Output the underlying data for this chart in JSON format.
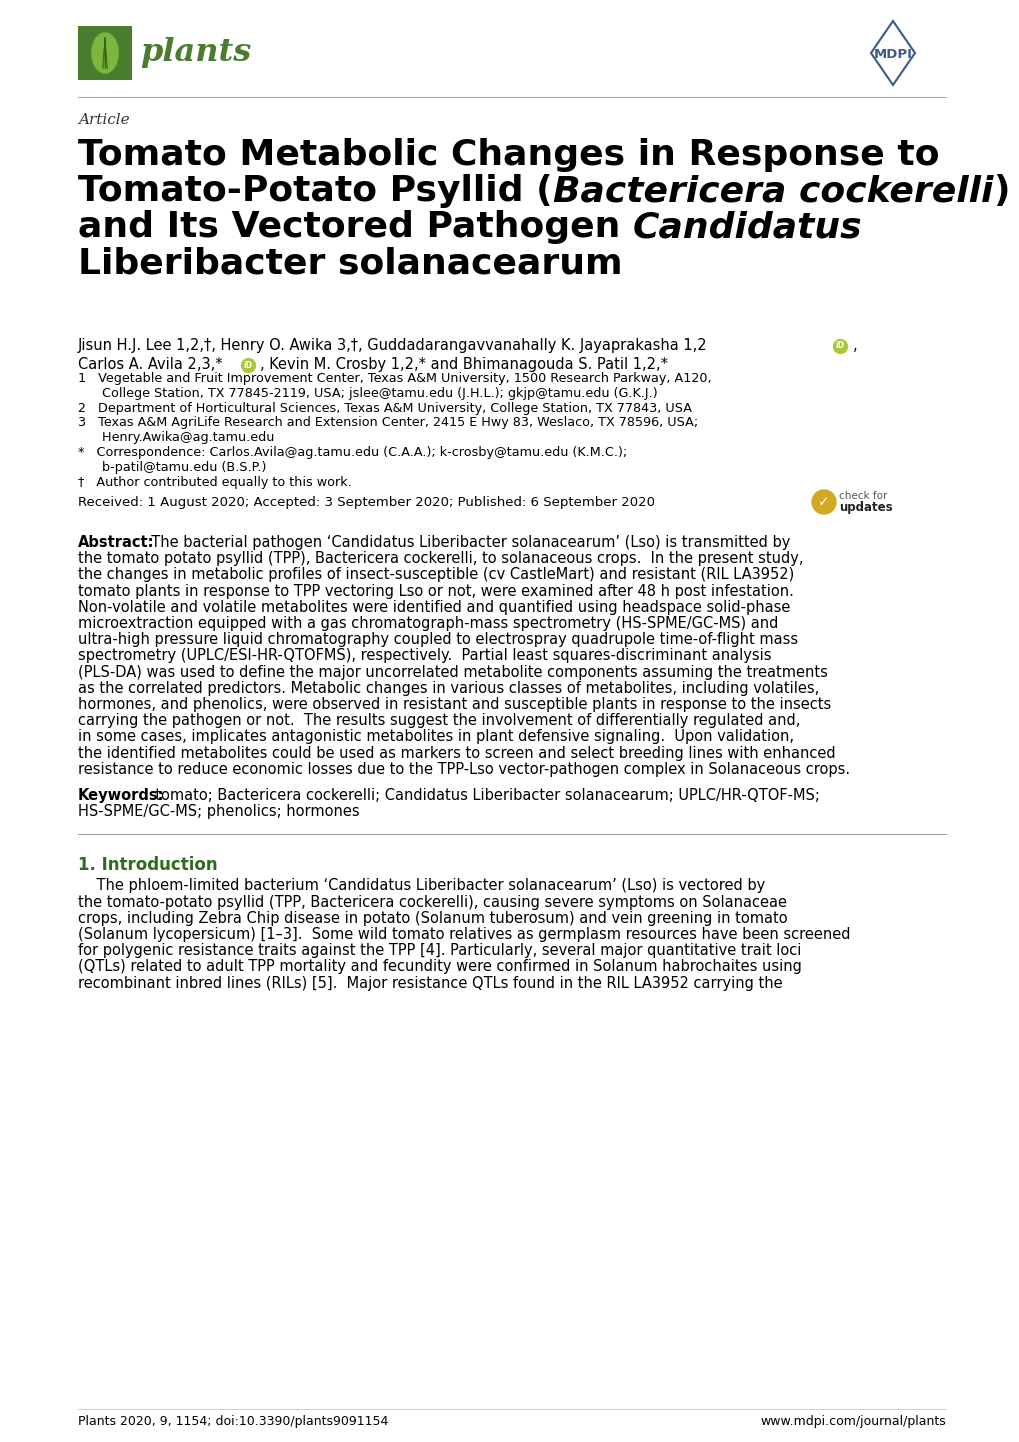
{
  "article_label": "Article",
  "title_line1": "Tomato Metabolic Changes in Response to",
  "title_line2_pre": "Tomato-Potato Psyllid (",
  "title_line2_italic": "Bactericera cockerelli",
  "title_line2_post": ")",
  "title_line3_pre": "and Its Vectored Pathogen ",
  "title_line3_italic": "Candidatus",
  "title_line4": "Liberibacter solanacearum",
  "author_line1": "Jisun H.J. Lee ",
  "author_line1_sup": "1,2,†",
  "author_line1b": ", Henry O. Awika ",
  "author_line1b_sup": "3,†",
  "author_line1c": ", Guddadarangavvanahally K. Jayaprakasha ",
  "author_line1c_sup": "1,2",
  "author_line2": "Carlos A. Avila ",
  "author_line2_sup": "2,3,*",
  "author_line2b": ", Kevin M. Crosby ",
  "author_line2b_sup": "1,2,*",
  "author_line2c": " and Bhimanagouda S. Patil ",
  "author_line2c_sup": "1,2,*",
  "affil_lines": [
    "1   Vegetable and Fruit Improvement Center, Texas A&M University, 1500 Research Parkway, A120,",
    "      College Station, TX 77845-2119, USA; jslee@tamu.edu (J.H.L.); gkjp@tamu.edu (G.K.J.)",
    "2   Department of Horticultural Sciences, Texas A&M University, College Station, TX 77843, USA",
    "3   Texas A&M AgriLife Research and Extension Center, 2415 E Hwy 83, Weslaco, TX 78596, USA;",
    "      Henry.Awika@ag.tamu.edu",
    "*   Correspondence: Carlos.Avila@ag.tamu.edu (C.A.A.); k-crosby@tamu.edu (K.M.C.);",
    "      b-patil@tamu.edu (B.S.P.)",
    "†   Author contributed equally to this work."
  ],
  "received": "Received: 1 August 2020; Accepted: 3 September 2020; Published: 6 September 2020",
  "abstract_lines": [
    "Abstract:  The bacterial pathogen ‘Candidatus Liberibacter solanacearum’ (Lso) is transmitted by",
    "the tomato potato psyllid (TPP), Bactericera cockerelli, to solanaceous crops.  In the present study,",
    "the changes in metabolic profiles of insect-susceptible (cv CastleMart) and resistant (RIL LA3952)",
    "tomato plants in response to TPP vectoring Lso or not, were examined after 48 h post infestation.",
    "Non-volatile and volatile metabolites were identified and quantified using headspace solid-phase",
    "microextraction equipped with a gas chromatograph-mass spectrometry (HS-SPME/GC-MS) and",
    "ultra-high pressure liquid chromatography coupled to electrospray quadrupole time-of-flight mass",
    "spectrometry (UPLC/ESI-HR-QTOFMS), respectively.  Partial least squares-discriminant analysis",
    "(PLS-DA) was used to define the major uncorrelated metabolite components assuming the treatments",
    "as the correlated predictors. Metabolic changes in various classes of metabolites, including volatiles,",
    "hormones, and phenolics, were observed in resistant and susceptible plants in response to the insects",
    "carrying the pathogen or not.  The results suggest the involvement of differentially regulated and,",
    "in some cases, implicates antagonistic metabolites in plant defensive signaling.  Upon validation,",
    "the identified metabolites could be used as markers to screen and select breeding lines with enhanced",
    "resistance to reduce economic losses due to the TPP-Lso vector-pathogen complex in Solanaceous crops."
  ],
  "keywords_line1": "Keywords:  tomato; Bactericera cockerelli; Candidatus Liberibacter solanacearum; UPLC/HR-QTOF-MS;",
  "keywords_line2": "HS-SPME/GC-MS; phenolics; hormones",
  "section1_title": "1. Introduction",
  "intro_lines": [
    "    The phloem-limited bacterium ‘Candidatus Liberibacter solanacearum’ (Lso) is vectored by",
    "the tomato-potato psyllid (TPP, Bactericera cockerelli), causing severe symptoms on Solanaceae",
    "crops, including Zebra Chip disease in potato (Solanum tuberosum) and vein greening in tomato",
    "(Solanum lycopersicum) [1–3].  Some wild tomato relatives as germplasm resources have been screened",
    "for polygenic resistance traits against the TPP [4]. Particularly, several major quantitative trait loci",
    "(QTLs) related to adult TPP mortality and fecundity were confirmed in Solanum habrochaites using",
    "recombinant inbred lines (RILs) [5].  Major resistance QTLs found in the RIL LA3952 carrying the"
  ],
  "footer_left": "Plants 2020, 9, 1154; doi:10.3390/plants9091154",
  "footer_right": "www.mdpi.com/journal/plants",
  "plants_green": "#4a7c2f",
  "mdpi_blue": "#3c5a8a",
  "section_green": "#2e6b1e",
  "bg_color": "#ffffff",
  "text_color": "#000000"
}
